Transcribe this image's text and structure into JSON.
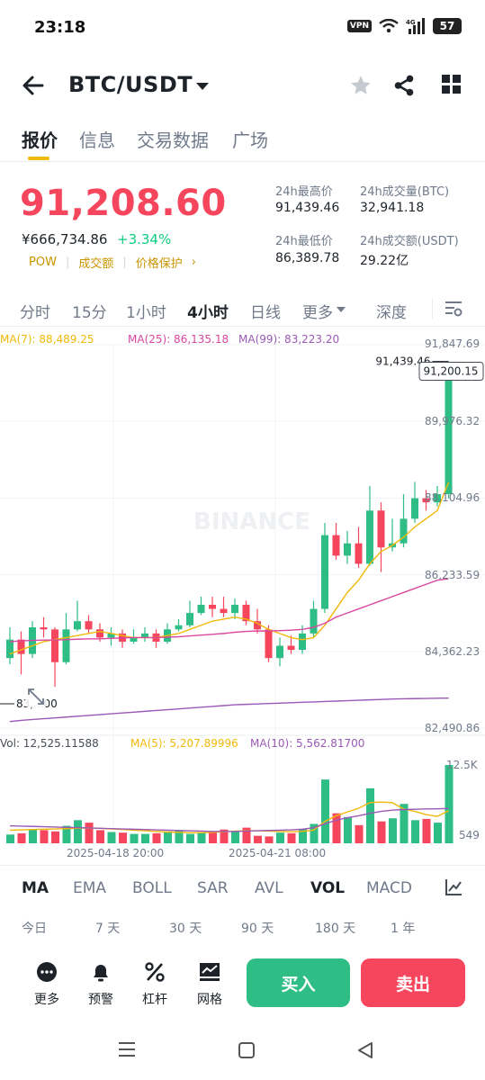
{
  "status": {
    "time": "23:18",
    "vpn": "VPN",
    "signal": "4G",
    "battery": "57"
  },
  "header": {
    "pair": "BTC/USDT"
  },
  "tabs": [
    "报价",
    "信息",
    "交易数据",
    "广场"
  ],
  "price": {
    "last": "91,208.60",
    "cny": "¥666,734.86",
    "change": "+3.34%",
    "tags": [
      "POW",
      "成交额",
      "价格保护"
    ]
  },
  "stats": {
    "high_label": "24h最高价",
    "high": "91,439.46",
    "low_label": "24h最低价",
    "low": "86,389.78",
    "vol_btc_label": "24h成交量(BTC)",
    "vol_btc": "32,941.18",
    "vol_usdt_label": "24h成交额(USDT)",
    "vol_usdt": "29.22亿"
  },
  "intervals": [
    "分时",
    "15分",
    "1小时",
    "4小时",
    "日线",
    "更多",
    "深度"
  ],
  "ma": {
    "ma7": "MA(7): 88,489.25",
    "ma25": "MA(25): 86,135.18",
    "ma99": "MA(99): 83,223.20"
  },
  "vol": {
    "vol": "Vol: 12,525.11588",
    "ma5": "MA(5): 5,207.89996",
    "ma10": "MA(10): 5,562.81700"
  },
  "colors": {
    "up": "#2ebd85",
    "down": "#f6465d",
    "accent": "#f0b90b",
    "ma7": "#f0b90b",
    "ma25": "#d9479f",
    "ma99": "#9b59b6"
  },
  "chart_data": {
    "type": "candlestick",
    "y_ticks": [
      "91,847.69",
      "89,976.32",
      "88,104.96",
      "86,233.59",
      "84,362.23",
      "82,490.86"
    ],
    "ylim": [
      82490.86,
      91847.69
    ],
    "high_marker": "91,439.46",
    "low_marker": "83,...00",
    "current_price": "91,200.15",
    "x_labels": [
      "2025-04-18 20:00",
      "2025-04-21 08:00"
    ],
    "candles": [
      [
        84200,
        84650,
        84950,
        84050
      ],
      [
        84650,
        84300,
        84850,
        83800
      ],
      [
        84300,
        84950,
        85100,
        84200
      ],
      [
        84950,
        84900,
        85200,
        84700
      ],
      [
        84900,
        84100,
        84950,
        83500
      ],
      [
        84100,
        84900,
        85300,
        84050
      ],
      [
        84900,
        85100,
        85600,
        84850
      ],
      [
        85100,
        84900,
        85250,
        84800
      ],
      [
        84900,
        84700,
        85050,
        84600
      ],
      [
        84700,
        84800,
        84950,
        84500
      ],
      [
        84800,
        84600,
        84900,
        84450
      ],
      [
        84600,
        84700,
        84900,
        84550
      ],
      [
        84700,
        84800,
        84950,
        84600
      ],
      [
        84800,
        84600,
        84900,
        84450
      ],
      [
        84600,
        84900,
        85050,
        84550
      ],
      [
        84900,
        85000,
        85150,
        84850
      ],
      [
        85000,
        85300,
        85600,
        84950
      ],
      [
        85300,
        85500,
        85700,
        85250
      ],
      [
        85500,
        85400,
        85700,
        85200
      ],
      [
        85400,
        85300,
        85700,
        85200
      ],
      [
        85300,
        85500,
        85650,
        85150
      ],
      [
        85500,
        85100,
        85600,
        85000
      ],
      [
        85100,
        84900,
        85400,
        84800
      ],
      [
        84900,
        84200,
        85000,
        84100
      ],
      [
        84200,
        84500,
        84700,
        84000
      ],
      [
        84500,
        84400,
        84750,
        84300
      ],
      [
        84400,
        84800,
        85000,
        84300
      ],
      [
        84800,
        85400,
        85600,
        84700
      ],
      [
        85400,
        87200,
        87500,
        85300
      ],
      [
        87200,
        86700,
        87500,
        86600
      ],
      [
        86700,
        87000,
        87300,
        86500
      ],
      [
        87000,
        86500,
        87400,
        86400
      ],
      [
        86500,
        87800,
        88400,
        86450
      ],
      [
        87800,
        86900,
        88000,
        86300
      ],
      [
        86900,
        87000,
        87600,
        86800
      ],
      [
        87000,
        87600,
        88200,
        86900
      ],
      [
        87600,
        88100,
        88500,
        87500
      ],
      [
        88100,
        88000,
        88300,
        87800
      ],
      [
        88000,
        88200,
        88400,
        87900
      ],
      [
        88200,
        91200,
        91439.46,
        88100
      ]
    ],
    "ma7": [
      84300,
      84400,
      84500,
      84600,
      84650,
      84700,
      84750,
      84800,
      84850,
      84800,
      84750,
      84700,
      84700,
      84700,
      84750,
      84800,
      84900,
      85000,
      85100,
      85150,
      85200,
      85150,
      85050,
      84900,
      84800,
      84700,
      84650,
      84700,
      85000,
      85400,
      85800,
      86100,
      86500,
      86800,
      86950,
      87150,
      87400,
      87600,
      87800,
      88489
    ],
    "ma25": [
      84600,
      84620,
      84630,
      84640,
      84640,
      84650,
      84660,
      84670,
      84670,
      84680,
      84690,
      84700,
      84700,
      84700,
      84710,
      84720,
      84740,
      84760,
      84780,
      84800,
      84830,
      84850,
      84860,
      84860,
      84870,
      84880,
      84900,
      84950,
      85050,
      85200,
      85300,
      85400,
      85500,
      85600,
      85700,
      85800,
      85900,
      86000,
      86100,
      86135
    ],
    "ma99": [
      82650,
      82680,
      82700,
      82720,
      82740,
      82760,
      82780,
      82800,
      82820,
      82840,
      82860,
      82880,
      82900,
      82920,
      82940,
      82960,
      82980,
      83000,
      83020,
      83040,
      83060,
      83070,
      83080,
      83090,
      83100,
      83110,
      83120,
      83130,
      83140,
      83150,
      83160,
      83170,
      83180,
      83190,
      83200,
      83205,
      83210,
      83215,
      83220,
      83223
    ],
    "vol_ticks": [
      "12.5K",
      "549"
    ],
    "volumes": [
      1400,
      1600,
      2200,
      2100,
      1900,
      2800,
      3700,
      3300,
      2100,
      1800,
      1700,
      1500,
      1500,
      1600,
      1900,
      2000,
      1500,
      1700,
      1900,
      2200,
      2000,
      2500,
      1200,
      1100,
      1700,
      1600,
      2300,
      3100,
      10200,
      4800,
      4200,
      2900,
      8800,
      3500,
      4000,
      6300,
      3700,
      3900,
      3300,
      12525
    ],
    "vol_ma5": [
      2100,
      2150,
      2200,
      2250,
      2300,
      2350,
      2400,
      2450,
      2400,
      2300,
      2200,
      2100,
      2000,
      1900,
      1800,
      1750,
      1700,
      1700,
      1750,
      1850,
      1950,
      2000,
      2000,
      1950,
      1900,
      1850,
      1900,
      2100,
      3500,
      4400,
      5000,
      5600,
      6500,
      6600,
      6500,
      5500,
      5100,
      4600,
      4300,
      5208
    ],
    "vol_ma10": [
      2800,
      2750,
      2700,
      2650,
      2600,
      2550,
      2500,
      2450,
      2400,
      2350,
      2300,
      2250,
      2200,
      2150,
      2100,
      2050,
      2000,
      1950,
      1900,
      1900,
      1900,
      1950,
      2000,
      2050,
      2100,
      2150,
      2250,
      2500,
      3100,
      3700,
      4100,
      4400,
      4800,
      5100,
      5300,
      5400,
      5450,
      5500,
      5520,
      5563
    ]
  },
  "indicators": [
    "MA",
    "EMA",
    "BOLL",
    "SAR",
    "AVL",
    "VOL",
    "MACD"
  ],
  "periods": [
    "今日",
    "7 天",
    "30 天",
    "90 天",
    "180 天",
    "1 年"
  ],
  "bottom": {
    "more": "更多",
    "alert": "预警",
    "leverage": "杠杆",
    "grid": "网格",
    "buy": "买入",
    "sell": "卖出"
  }
}
